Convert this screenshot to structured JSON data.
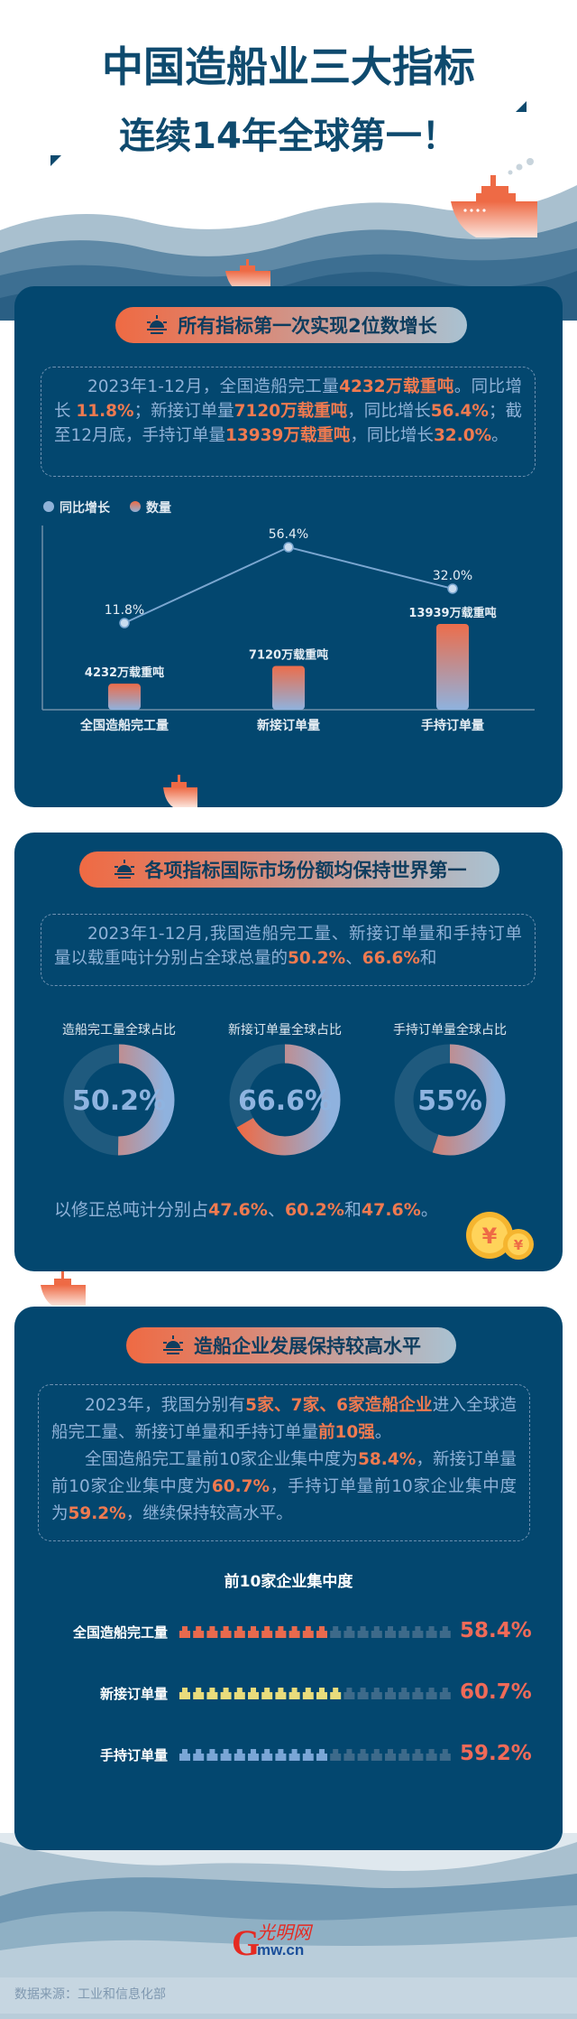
{
  "header": {
    "title_line1": "中国造船业三大指标",
    "title_line2": "连续14年全球第一！"
  },
  "colors": {
    "title": "#0e4a6e",
    "card": "#03476f",
    "highlight": "#f07a50",
    "text": "#8fb2d8"
  },
  "section1": {
    "title": "所有指标第一次实现2位数增长",
    "paragraph": [
      {
        "t": "2023年1-12月，全国造船完工量",
        "h": false
      },
      {
        "t": "4232万载重吨",
        "h": true
      },
      {
        "t": "。同比增长 ",
        "h": false
      },
      {
        "t": "11.8%",
        "h": true
      },
      {
        "t": "；新接订单量",
        "h": false
      },
      {
        "t": "7120万载重吨",
        "h": true
      },
      {
        "t": "，同比增长",
        "h": false
      },
      {
        "t": "56.4%",
        "h": true
      },
      {
        "t": "；截至12月底，手持订单量",
        "h": false
      },
      {
        "t": "13939万载重吨",
        "h": true
      },
      {
        "t": "，同比增长",
        "h": false
      },
      {
        "t": "32.0%",
        "h": true
      },
      {
        "t": "。",
        "h": false
      }
    ]
  },
  "chart_data": [
    {
      "type": "bar+line",
      "legend": [
        "同比增长",
        "数量"
      ],
      "legend_placement": "top-left",
      "categories": [
        "全国造船完工量",
        "新接订单量",
        "手持订单量"
      ],
      "series": [
        {
          "name": "数量",
          "type": "bar",
          "values": [
            4232,
            7120,
            13939
          ],
          "labels": [
            "4232万载重吨",
            "7120万载重吨",
            "13939万载重吨"
          ]
        },
        {
          "name": "同比增长",
          "type": "line",
          "values": [
            11.8,
            56.4,
            32.0
          ],
          "labels": [
            "11.8%",
            "56.4%",
            "32.0%"
          ]
        }
      ],
      "grid": false
    },
    {
      "type": "pie",
      "variant": "donut",
      "items": [
        {
          "label": "造船完工量全球占比",
          "value": 50.2,
          "text": "50.2%"
        },
        {
          "label": "新接订单量全球占比",
          "value": 66.6,
          "text": "66.6%"
        },
        {
          "label": "手持订单量全球占比",
          "value": 55,
          "text": "55%"
        }
      ]
    },
    {
      "type": "bar",
      "variant": "pictogram",
      "title": "前10家企业集中度",
      "categories": [
        "全国造船完工量",
        "新接订单量",
        "手持订单量"
      ],
      "values": [
        58.4,
        60.7,
        59.2
      ],
      "labels": [
        "58.4%",
        "60.7%",
        "59.2%"
      ],
      "fill_colors": [
        "#e86a4e",
        "#e9dc7c",
        "#7aa6d6"
      ]
    }
  ],
  "section2": {
    "title": "各项指标国际市场份额均保持世界第一",
    "paragraph": [
      {
        "t": "2023年1-12月,我国造船完工量、新接订单量和手持订单量以载重吨计分别占全球总量的",
        "h": false
      },
      {
        "t": "50.2%",
        "h": true
      },
      {
        "t": "、",
        "h": false
      },
      {
        "t": "66.6%",
        "h": true
      },
      {
        "t": "和",
        "h": false
      }
    ],
    "bottom": [
      {
        "t": "以修正总吨计分别占",
        "h": false
      },
      {
        "t": "47.6%",
        "h": true
      },
      {
        "t": "、",
        "h": false
      },
      {
        "t": "60.2%",
        "h": true
      },
      {
        "t": "和",
        "h": false
      },
      {
        "t": "47.6%",
        "h": true
      },
      {
        "t": "。",
        "h": false
      }
    ],
    "coin_icon": "yuan-coin-icon"
  },
  "section3": {
    "title": "造船企业发展保持较高水平",
    "paragraph1": [
      {
        "t": "2023年，我国分别有",
        "h": false
      },
      {
        "t": "5家、7家、6家造船企业",
        "h": true
      },
      {
        "t": "进入全球造船完工量、新接订单量和手持订单量",
        "h": false
      },
      {
        "t": "前10强",
        "h": true
      },
      {
        "t": "。",
        "h": false
      }
    ],
    "paragraph2": [
      {
        "t": "全国造船完工量前10家企业集中度为",
        "h": false
      },
      {
        "t": "58.4%",
        "h": true
      },
      {
        "t": "，新接订单量前10家企业集中度为",
        "h": false
      },
      {
        "t": "60.7%",
        "h": true
      },
      {
        "t": "，手持订单量前10家企业集中度为",
        "h": false
      },
      {
        "t": "59.2%",
        "h": true
      },
      {
        "t": "，继续保持较高水平。",
        "h": false
      }
    ]
  },
  "footer": {
    "source": "数据来源：工业和信息化部",
    "logo": "光明网 Gmw.cn"
  }
}
